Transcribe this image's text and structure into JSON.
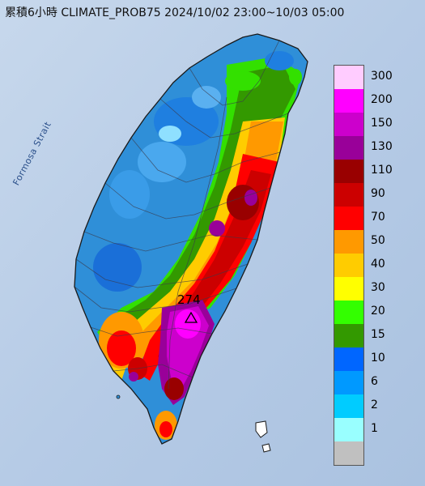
{
  "title": "累積6小時 CLIMATE_PROB75 2024/10/02 23:00~10/03 05:00",
  "strait_label": "Formosa Strait",
  "peak_value": "274",
  "colors": {
    "sea": "#bcd0e8",
    "land": "#2f8fd8"
  },
  "legend": {
    "items": [
      {
        "label": "300",
        "color": "#ffccff"
      },
      {
        "label": "200",
        "color": "#ff00ff"
      },
      {
        "label": "150",
        "color": "#cc00cc"
      },
      {
        "label": "130",
        "color": "#990099"
      },
      {
        "label": "110",
        "color": "#990000"
      },
      {
        "label": "90",
        "color": "#cc0000"
      },
      {
        "label": "70",
        "color": "#ff0000"
      },
      {
        "label": "50",
        "color": "#ff9900"
      },
      {
        "label": "40",
        "color": "#ffcc00"
      },
      {
        "label": "30",
        "color": "#ffff00"
      },
      {
        "label": "20",
        "color": "#33ff00"
      },
      {
        "label": "15",
        "color": "#339900"
      },
      {
        "label": "10",
        "color": "#0066ff"
      },
      {
        "label": "6",
        "color": "#0099ff"
      },
      {
        "label": "2",
        "color": "#00ccff"
      },
      {
        "label": "1",
        "color": "#99ffff"
      },
      {
        "label": "",
        "color": "#c0c0c0"
      }
    ]
  }
}
